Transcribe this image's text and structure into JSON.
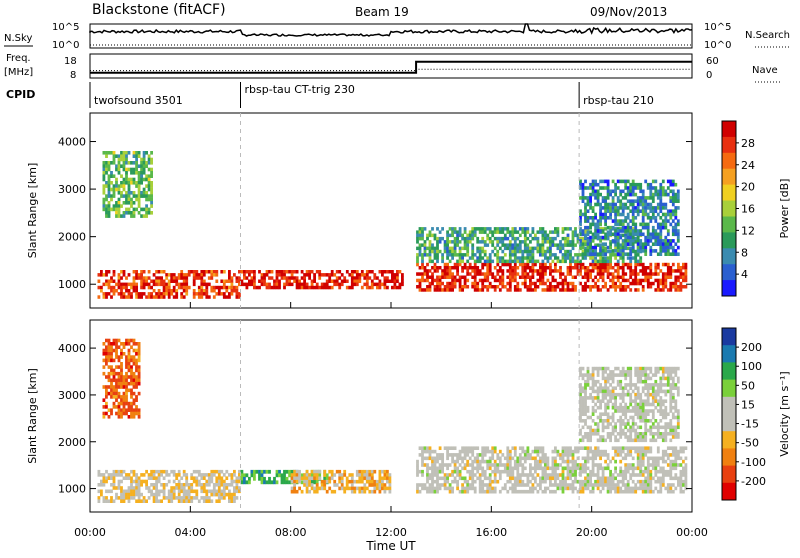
{
  "header": {
    "station": "Blackstone (fitACF)",
    "beam": "Beam 19",
    "date": "09/Nov/2013"
  },
  "strip": {
    "nsky_label": "N.Sky",
    "nsearch_label": "N.Search",
    "freq_label": "Freq.",
    "freq_unit": "[MHz]",
    "nave_label": "Nave",
    "cpid_label": "CPID",
    "left_ticks_top": [
      "10^5",
      "10^0"
    ],
    "right_ticks_top": [
      "10^5",
      "10^0"
    ],
    "left_ticks_freq": [
      "18",
      "8"
    ],
    "right_ticks_nave": [
      "60",
      "0"
    ],
    "freq_step": {
      "before_hours": 8.4,
      "after_hours": 15.0,
      "change_hour": 13.0
    },
    "nave_step": {
      "before": 20,
      "after": 24
    }
  },
  "cpid": [
    {
      "name": "twofsound 3501",
      "start": 0.0
    },
    {
      "name": "rbsp-tau CT-trig 230",
      "start": 6.0
    },
    {
      "name": "rbsp-tau 210",
      "start": 19.5
    }
  ],
  "colors": {
    "power": [
      "#1a1aff",
      "#2a5fd0",
      "#3a8bb0",
      "#2a9a5a",
      "#5ab84a",
      "#a8d03a",
      "#f0d020",
      "#f5a020",
      "#f56a10",
      "#e83010",
      "#d00000"
    ],
    "velocity": [
      "#1a3aa0",
      "#1a7ab0",
      "#2aa84a",
      "#7ad03a",
      "#c0c0b8",
      "#c0c0b8",
      "#f5b020",
      "#f08010",
      "#e84010",
      "#e00000"
    ]
  },
  "chart_data": [
    {
      "type": "heatmap",
      "title": "Power",
      "xlabel": "Time UT",
      "ylabel": "Slant Range [km]",
      "x_ticks": [
        "00:00",
        "04:00",
        "08:00",
        "12:00",
        "16:00",
        "20:00",
        "00:00"
      ],
      "y_ticks": [
        "1000",
        "2000",
        "3000",
        "4000"
      ],
      "ylim": [
        500,
        4600
      ],
      "colorbar": {
        "label": "Power [dB]",
        "ticks": [
          "4",
          "8",
          "12",
          "16",
          "20",
          "24",
          "28"
        ],
        "range": [
          0,
          30
        ]
      },
      "features": [
        {
          "t0": 0.3,
          "t1": 6.0,
          "r0": 700,
          "r1": 1300,
          "level": 26
        },
        {
          "t0": 6.0,
          "t1": 12.5,
          "r0": 900,
          "r1": 1300,
          "level": 28
        },
        {
          "t0": 13.0,
          "t1": 23.8,
          "r0": 850,
          "r1": 1450,
          "level": 27
        },
        {
          "t0": 13.0,
          "t1": 22.0,
          "r0": 1450,
          "r1": 2200,
          "level": 10
        },
        {
          "t0": 0.5,
          "t1": 2.5,
          "r0": 2400,
          "r1": 3800,
          "level": 12
        },
        {
          "t0": 19.5,
          "t1": 23.5,
          "r0": 1600,
          "r1": 3200,
          "level": 7
        }
      ]
    },
    {
      "type": "heatmap",
      "title": "Velocity",
      "xlabel": "Time UT",
      "ylabel": "Slant Range [km]",
      "x_ticks": [
        "00:00",
        "04:00",
        "08:00",
        "12:00",
        "16:00",
        "20:00",
        "00:00"
      ],
      "y_ticks": [
        "1000",
        "2000",
        "3000",
        "4000"
      ],
      "ylim": [
        500,
        4600
      ],
      "colorbar": {
        "label": "Velocity [m s⁻¹]",
        "ticks": [
          "200",
          "100",
          "50",
          "15",
          "-15",
          "-50",
          "-100",
          "-200"
        ],
        "range": [
          -250,
          250
        ]
      },
      "features": [
        {
          "t0": 0.3,
          "t1": 6.0,
          "r0": 700,
          "r1": 1400,
          "level": -40
        },
        {
          "t0": 6.0,
          "t1": 9.5,
          "r0": 1100,
          "r1": 1400,
          "level": 120
        },
        {
          "t0": 8.0,
          "t1": 12.0,
          "r0": 900,
          "r1": 1400,
          "level": -60
        },
        {
          "t0": 13.0,
          "t1": 23.8,
          "r0": 900,
          "r1": 1900,
          "level": 0
        },
        {
          "t0": 0.5,
          "t1": 2.0,
          "r0": 2500,
          "r1": 4200,
          "level": -150
        },
        {
          "t0": 19.5,
          "t1": 23.5,
          "r0": 2000,
          "r1": 3600,
          "level": 5
        }
      ]
    }
  ]
}
